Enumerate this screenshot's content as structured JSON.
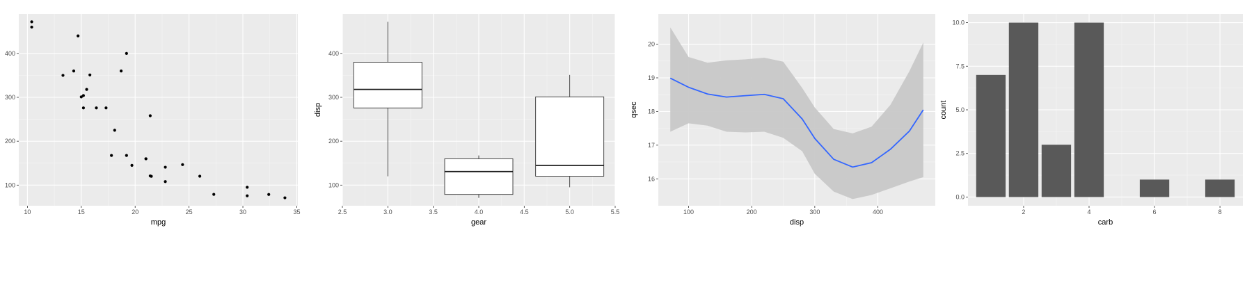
{
  "chart_data": [
    {
      "type": "scatter",
      "xlabel": "mpg",
      "ylabel": "disp",
      "xlim": [
        9.2,
        35.1
      ],
      "ylim": [
        53,
        490
      ],
      "xticks": [
        10,
        15,
        20,
        25,
        30,
        35
      ],
      "yticks": [
        100,
        200,
        300,
        400
      ],
      "grid": true,
      "points": [
        {
          "x": 21.0,
          "y": 160
        },
        {
          "x": 21.0,
          "y": 160
        },
        {
          "x": 22.8,
          "y": 108
        },
        {
          "x": 21.4,
          "y": 258
        },
        {
          "x": 18.7,
          "y": 360
        },
        {
          "x": 18.1,
          "y": 225
        },
        {
          "x": 14.3,
          "y": 360
        },
        {
          "x": 24.4,
          "y": 146.7
        },
        {
          "x": 22.8,
          "y": 140.8
        },
        {
          "x": 19.2,
          "y": 167.6
        },
        {
          "x": 17.8,
          "y": 167.6
        },
        {
          "x": 16.4,
          "y": 275.8
        },
        {
          "x": 17.3,
          "y": 275.8
        },
        {
          "x": 15.2,
          "y": 275.8
        },
        {
          "x": 10.4,
          "y": 472
        },
        {
          "x": 10.4,
          "y": 460
        },
        {
          "x": 14.7,
          "y": 440
        },
        {
          "x": 32.4,
          "y": 78.7
        },
        {
          "x": 30.4,
          "y": 75.7
        },
        {
          "x": 33.9,
          "y": 71.1
        },
        {
          "x": 21.5,
          "y": 120.1
        },
        {
          "x": 15.5,
          "y": 318
        },
        {
          "x": 15.2,
          "y": 304
        },
        {
          "x": 13.3,
          "y": 350
        },
        {
          "x": 19.2,
          "y": 400
        },
        {
          "x": 27.3,
          "y": 79
        },
        {
          "x": 26.0,
          "y": 120.3
        },
        {
          "x": 30.4,
          "y": 95.1
        },
        {
          "x": 15.8,
          "y": 351
        },
        {
          "x": 19.7,
          "y": 145
        },
        {
          "x": 15.0,
          "y": 301
        },
        {
          "x": 21.4,
          "y": 121
        }
      ]
    },
    {
      "type": "boxplot",
      "xlabel": "gear",
      "ylabel": "disp",
      "xlim": [
        2.5,
        5.5
      ],
      "ylim": [
        53,
        490
      ],
      "xticks": [
        2.5,
        3.0,
        3.5,
        4.0,
        4.5,
        5.0,
        5.5
      ],
      "xtick_labels": [
        "2.5",
        "3.0",
        "3.5",
        "4.0",
        "4.5",
        "5.0",
        "5.5"
      ],
      "yticks": [
        100,
        200,
        300,
        400
      ],
      "grid": true,
      "boxes": [
        {
          "x": 3,
          "min": 120.1,
          "q1": 275.8,
          "median": 318,
          "q3": 380,
          "max": 472
        },
        {
          "x": 4,
          "min": 71.1,
          "q1": 78.85,
          "median": 130.9,
          "q3": 160,
          "max": 167.6
        },
        {
          "x": 5,
          "min": 95.1,
          "q1": 120.3,
          "median": 145,
          "q3": 301,
          "max": 351
        }
      ]
    },
    {
      "type": "line",
      "xlabel": "disp",
      "ylabel": "qsec",
      "xlim": [
        52,
        491
      ],
      "ylim": [
        15.2,
        20.9
      ],
      "xticks": [
        100,
        200,
        300,
        400
      ],
      "yticks": [
        16,
        17,
        18,
        19,
        20
      ],
      "grid": true,
      "line_color": "#3366ff",
      "band_color": "#c8c8c8",
      "series": [
        {
          "x": [
            71,
            100,
            130,
            160,
            190,
            220,
            250,
            280,
            300,
            330,
            360,
            390,
            420,
            450,
            472
          ],
          "y": [
            18.99,
            18.72,
            18.52,
            18.43,
            18.47,
            18.51,
            18.38,
            17.78,
            17.2,
            16.58,
            16.35,
            16.48,
            16.88,
            17.42,
            18.05
          ],
          "upper": [
            20.5,
            19.62,
            19.45,
            19.52,
            19.55,
            19.6,
            19.48,
            18.7,
            18.12,
            17.48,
            17.35,
            17.55,
            18.2,
            19.2,
            20.05
          ],
          "lower": [
            17.4,
            17.65,
            17.58,
            17.4,
            17.38,
            17.4,
            17.22,
            16.82,
            16.15,
            15.62,
            15.4,
            15.52,
            15.72,
            15.92,
            16.05
          ]
        }
      ]
    },
    {
      "type": "bar",
      "xlabel": "carb",
      "ylabel": "count",
      "xlim": [
        0.3,
        8.7
      ],
      "ylim": [
        -0.5,
        10.5
      ],
      "xticks": [
        2,
        4,
        6,
        8
      ],
      "yticks": [
        0,
        2.5,
        5,
        7.5,
        10
      ],
      "ytick_labels": [
        "0.0",
        "2.5",
        "5.0",
        "7.5",
        "10.0"
      ],
      "grid": true,
      "bar_color": "#595959",
      "categories": [
        1,
        2,
        3,
        4,
        6,
        8
      ],
      "values": [
        7,
        10,
        3,
        10,
        1,
        1
      ]
    }
  ]
}
